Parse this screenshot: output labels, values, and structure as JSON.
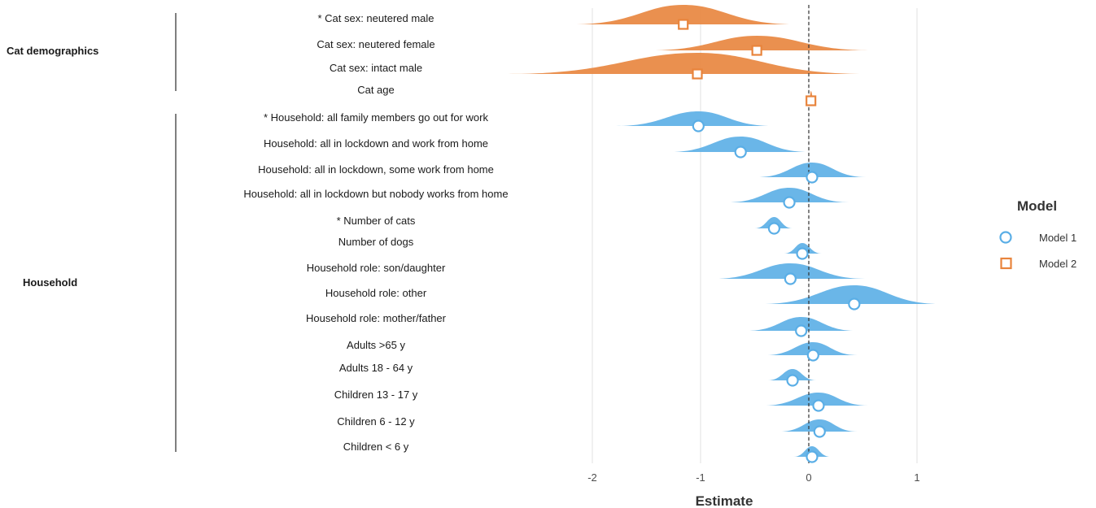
{
  "chart_data": {
    "type": "scatter",
    "xlabel": "Estimate",
    "xlim": [
      -2.5,
      1.4
    ],
    "xticks": [
      -2,
      -1,
      0,
      1
    ],
    "reference_line_x": 0,
    "grid": true,
    "legend": {
      "title": "Model",
      "placement": "right",
      "entries": [
        {
          "name": "Model 1",
          "marker": "circle",
          "color": "#5aaee6"
        },
        {
          "name": "Model 2",
          "marker": "square",
          "color": "#e8843c"
        }
      ]
    },
    "groups": [
      {
        "label": "Cat demographics",
        "rows": [
          0,
          1,
          2,
          3
        ]
      },
      {
        "label": "Household",
        "rows": [
          4,
          5,
          6,
          7,
          8,
          9,
          10,
          11,
          12,
          13,
          14,
          15,
          16,
          17
        ]
      }
    ],
    "rows": [
      {
        "label": "Cat sex: neutered male",
        "star": true,
        "model": "Model 2",
        "estimate": -1.16,
        "low": -2.18,
        "high": -0.12
      },
      {
        "label": "Cat sex: neutered female",
        "star": false,
        "model": "Model 2",
        "estimate": -0.48,
        "low": -1.48,
        "high": 0.58
      },
      {
        "label": "Cat sex: intact male",
        "star": false,
        "model": "Model 2",
        "estimate": -1.03,
        "low": -2.78,
        "high": 0.52
      },
      {
        "label": "Cat age",
        "star": false,
        "model": "Model 2",
        "estimate": 0.02,
        "low": 0.0,
        "high": 0.05
      },
      {
        "label": "Household: all family members go out for work",
        "star": true,
        "model": "Model 1",
        "estimate": -1.02,
        "low": -1.78,
        "high": -0.33
      },
      {
        "label": "Household: all in lockdown and work from home",
        "star": false,
        "model": "Model 1",
        "estimate": -0.63,
        "low": -1.29,
        "high": 0.0
      },
      {
        "label": "Household: all in lockdown, some work from home",
        "star": false,
        "model": "Model 1",
        "estimate": 0.03,
        "low": -0.48,
        "high": 0.53
      },
      {
        "label": "Household: all in lockdown but nobody works from home",
        "star": false,
        "model": "Model 1",
        "estimate": -0.18,
        "low": -0.75,
        "high": 0.37
      },
      {
        "label": "Number of cats",
        "star": true,
        "model": "Model 1",
        "estimate": -0.32,
        "low": -0.5,
        "high": -0.15
      },
      {
        "label": "Number of dogs",
        "star": false,
        "model": "Model 1",
        "estimate": -0.06,
        "low": -0.23,
        "high": 0.12
      },
      {
        "label": "Household role: son/daughter",
        "star": false,
        "model": "Model 1",
        "estimate": -0.17,
        "low": -0.88,
        "high": 0.52
      },
      {
        "label": "Household role: other",
        "star": false,
        "model": "Model 1",
        "estimate": 0.42,
        "low": -0.43,
        "high": 1.22
      },
      {
        "label": "Household role: mother/father",
        "star": false,
        "model": "Model 1",
        "estimate": -0.07,
        "low": -0.57,
        "high": 0.43
      },
      {
        "label": "Adults >65 y",
        "star": false,
        "model": "Model 1",
        "estimate": 0.04,
        "low": -0.4,
        "high": 0.45
      },
      {
        "label": "Adults 18 - 64 y",
        "star": false,
        "model": "Model 1",
        "estimate": -0.15,
        "low": -0.38,
        "high": 0.07
      },
      {
        "label": "Children 13 - 17 y",
        "star": false,
        "model": "Model 1",
        "estimate": 0.09,
        "low": -0.42,
        "high": 0.55
      },
      {
        "label": "Children 6 - 12 y",
        "star": false,
        "model": "Model 1",
        "estimate": 0.1,
        "low": -0.27,
        "high": 0.45
      },
      {
        "label": "Children < 6 y",
        "star": false,
        "model": "Model 1",
        "estimate": 0.03,
        "low": -0.14,
        "high": 0.2
      }
    ]
  }
}
